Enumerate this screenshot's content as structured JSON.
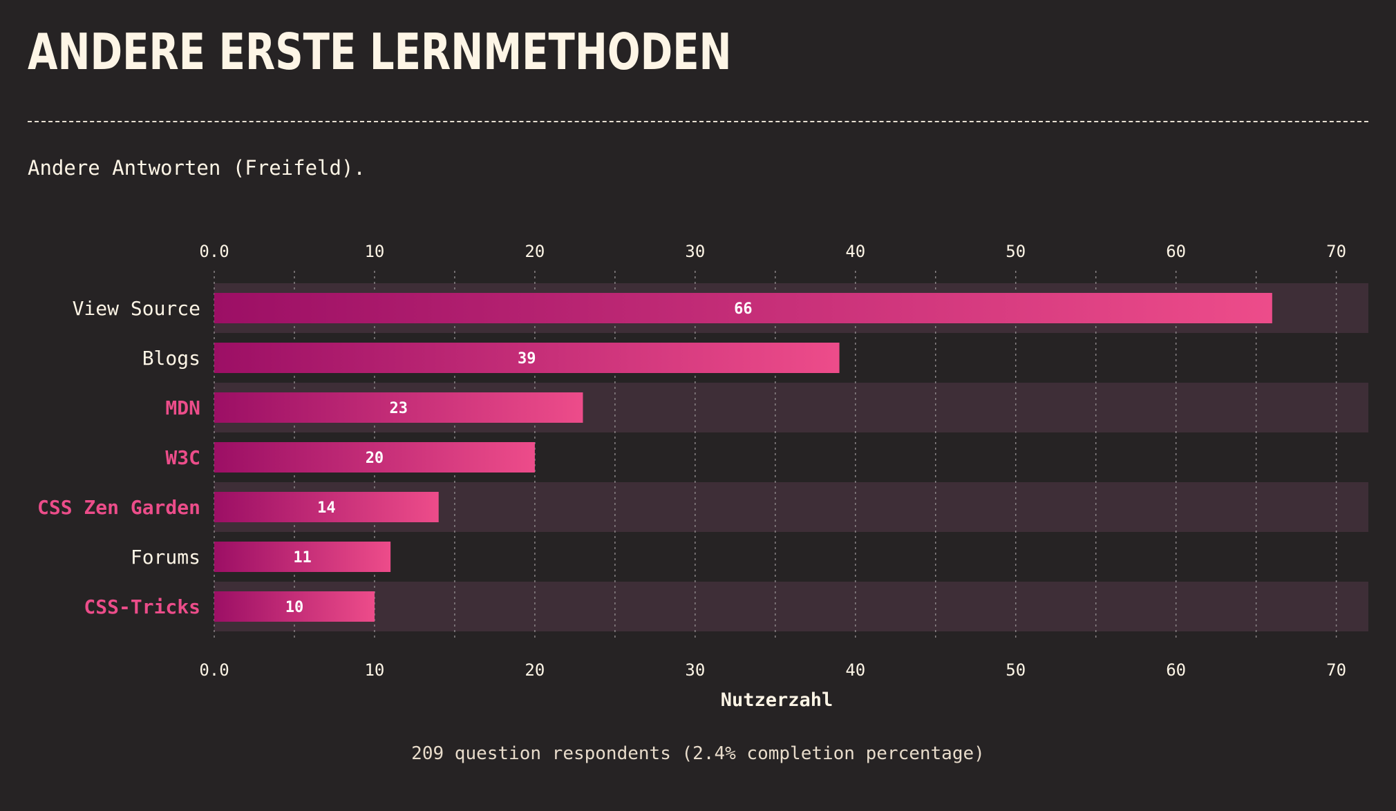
{
  "page": {
    "title": "ANDERE ERSTE LERNMETHODEN",
    "subtitle": "Andere Antworten (Freifeld).",
    "footnote": "209 question respondents (2.4% completion percentage)"
  },
  "colors": {
    "background": "#262324",
    "text": "#fdf5e6",
    "highlight_label": "#ec4d8a",
    "bar_gradient_start": "#9c0f65",
    "bar_gradient_end": "#ed4c8a",
    "band": "#3e2e37",
    "grid": "#8a8486"
  },
  "chart_data": {
    "type": "bar",
    "orientation": "horizontal",
    "categories": [
      "View Source",
      "Blogs",
      "MDN",
      "W3C",
      "CSS Zen Garden",
      "Forums",
      "CSS-Tricks"
    ],
    "highlighted": [
      false,
      false,
      true,
      true,
      true,
      false,
      true
    ],
    "values": [
      66,
      39,
      23,
      20,
      14,
      11,
      10
    ],
    "xlabel": "Nutzerzahl",
    "xlim": [
      0,
      72
    ],
    "ticks": [
      {
        "value": 0,
        "label": "0.0"
      },
      {
        "value": 10,
        "label": "10"
      },
      {
        "value": 20,
        "label": "20"
      },
      {
        "value": 30,
        "label": "30"
      },
      {
        "value": 40,
        "label": "40"
      },
      {
        "value": 50,
        "label": "50"
      },
      {
        "value": 60,
        "label": "60"
      },
      {
        "value": 70,
        "label": "70"
      }
    ],
    "minor_grid_step": 5,
    "axes": [
      "top",
      "bottom"
    ],
    "grid": true,
    "data_labels": true
  }
}
